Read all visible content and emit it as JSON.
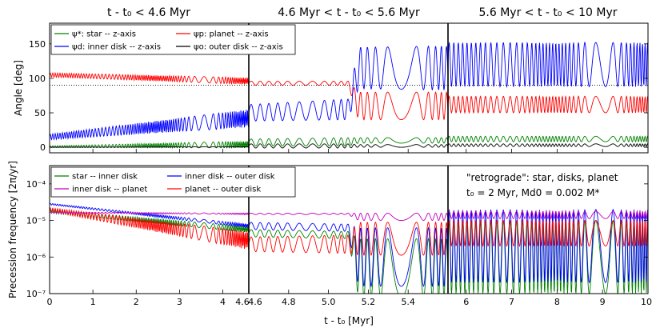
{
  "colors": {
    "star": "#008000",
    "inner": "#0000ff",
    "planet": "#ff0000",
    "outer": "#000000",
    "mag": "#bf00bf"
  },
  "panel_titles": [
    "t - t₀ < 4.6 Myr",
    "4.6 Myr < t - t₀ < 5.6 Myr",
    "5.6 Myr < t - t₀ < 10 Myr"
  ],
  "chart_data": [
    {
      "type": "line",
      "ylabel": "Angle [deg]",
      "ylim": [
        -8,
        180
      ],
      "yticks": [
        0,
        50,
        100,
        150
      ],
      "reference_line": 90,
      "legend": [
        "ψ*: star -- z-axis",
        "ψd: inner disk -- z-axis",
        "ψp: planet -- z-axis",
        "ψo: outer disk -- z-axis"
      ],
      "series": [
        {
          "name": "planet",
          "segments": [
            {
              "range": [
                0,
                4.6
              ],
              "center": [
                105,
                96
              ],
              "amp": [
                3,
                5
              ]
            },
            {
              "range": [
                4.6,
                5.6
              ],
              "center": [
                93,
                93,
                60,
                60
              ],
              "amp": [
                3,
                3,
                20,
                20
              ],
              "knots": [
                0,
                0.5,
                0.55,
                1
              ]
            },
            {
              "range": [
                5.6,
                10
              ],
              "center": [
                62,
                62
              ],
              "amp": [
                12,
                12
              ]
            }
          ]
        },
        {
          "name": "inner disk",
          "segments": [
            {
              "range": [
                0,
                4.6
              ],
              "center": [
                15,
                42
              ],
              "amp": [
                4,
                13
              ]
            },
            {
              "range": [
                4.6,
                5.6
              ],
              "center": [
                50,
                55,
                115,
                115
              ],
              "amp": [
                12,
                15,
                30,
                32
              ],
              "knots": [
                0,
                0.5,
                0.55,
                1
              ]
            },
            {
              "range": [
                5.6,
                10
              ],
              "center": [
                120,
                120
              ],
              "amp": [
                32,
                32
              ]
            }
          ]
        },
        {
          "name": "star",
          "segments": [
            {
              "range": [
                0,
                4.6
              ],
              "center": [
                1,
                4
              ],
              "amp": [
                1,
                5
              ]
            },
            {
              "range": [
                4.6,
                5.6
              ],
              "center": [
                7,
                8,
                10,
                10
              ],
              "amp": [
                5,
                6,
                4,
                4
              ],
              "knots": [
                0,
                0.5,
                0.55,
                1
              ]
            },
            {
              "range": [
                5.6,
                10
              ],
              "center": [
                12,
                12
              ],
              "amp": [
                4,
                4
              ]
            }
          ]
        },
        {
          "name": "outer disk",
          "segments": [
            {
              "range": [
                0,
                4.6
              ],
              "center": [
                0,
                0.5
              ],
              "amp": [
                0.3,
                0.5
              ]
            },
            {
              "range": [
                4.6,
                5.6
              ],
              "center": [
                2,
                2,
                2,
                2
              ],
              "amp": [
                3,
                3,
                2,
                2
              ],
              "knots": [
                0,
                0.5,
                0.55,
                1
              ]
            },
            {
              "range": [
                5.6,
                10
              ],
              "center": [
                3,
                3
              ],
              "amp": [
                2,
                2
              ]
            }
          ]
        }
      ]
    },
    {
      "type": "line",
      "yscale": "log",
      "ylabel": "Precession frequency [2π/yr]",
      "ylim_exp": [
        -7,
        -3.5
      ],
      "ytick_exps": [
        -7,
        -6,
        -5,
        -4
      ],
      "ytick_labels": [
        "10⁻⁷",
        "10⁻⁶",
        "10⁻⁵",
        "10⁻⁴"
      ],
      "legend": [
        "star -- inner disk",
        "inner disk -- planet",
        "inner disk -- outer disk",
        "planet -- outer disk"
      ],
      "series": [
        {
          "name": "star -- inner disk",
          "segments": [
            {
              "range": [
                0,
                4.6
              ],
              "center": [
                -4.75,
                -5.25
              ],
              "amp": [
                0.05,
                0.08
              ]
            },
            {
              "range": [
                4.6,
                5.6
              ],
              "center": [
                -5.35,
                -5.4,
                -6.3,
                -6.3
              ],
              "amp": [
                0.1,
                0.1,
                0.8,
                0.8
              ],
              "knots": [
                0,
                0.5,
                0.55,
                1
              ]
            },
            {
              "range": [
                5.6,
                10
              ],
              "center": [
                -6,
                -6
              ],
              "amp": [
                1,
                1
              ]
            }
          ]
        },
        {
          "name": "inner disk -- outer disk",
          "segments": [
            {
              "range": [
                0,
                4.6
              ],
              "center": [
                -4.55,
                -5.15
              ],
              "amp": [
                0.02,
                0.05
              ]
            },
            {
              "range": [
                4.6,
                5.6
              ],
              "center": [
                -5.15,
                -5.2,
                -6,
                -6
              ],
              "amp": [
                0.1,
                0.1,
                0.8,
                0.8
              ],
              "knots": [
                0,
                0.5,
                0.55,
                1
              ]
            },
            {
              "range": [
                5.6,
                10
              ],
              "center": [
                -5.7,
                -5.7
              ],
              "amp": [
                1,
                1
              ]
            }
          ]
        },
        {
          "name": "planet -- outer disk",
          "segments": [
            {
              "range": [
                0,
                4.6
              ],
              "center": [
                -4.7,
                -5.55
              ],
              "amp": [
                0.05,
                0.25
              ]
            },
            {
              "range": [
                4.6,
                5.6
              ],
              "center": [
                -5.65,
                -5.65,
                -5.5,
                -5.5
              ],
              "amp": [
                0.2,
                0.25,
                0.45,
                0.45
              ],
              "knots": [
                0,
                0.5,
                0.55,
                1
              ]
            },
            {
              "range": [
                5.6,
                10
              ],
              "center": [
                -5.35,
                -5.35
              ],
              "amp": [
                0.35,
                0.35
              ]
            }
          ]
        },
        {
          "name": "inner disk -- planet",
          "segments": [
            {
              "range": [
                0,
                4.6
              ],
              "center": [
                -4.78,
                -4.82
              ],
              "amp": [
                0.01,
                0.02
              ]
            },
            {
              "range": [
                4.6,
                5.6
              ],
              "center": [
                -4.82,
                -4.82,
                -4.9,
                -4.9
              ],
              "amp": [
                0.02,
                0.02,
                0.1,
                0.1
              ],
              "knots": [
                0,
                0.5,
                0.55,
                1
              ]
            },
            {
              "range": [
                5.6,
                10
              ],
              "center": [
                -4.85,
                -4.85
              ],
              "amp": [
                0.1,
                0.1
              ]
            }
          ]
        }
      ]
    }
  ],
  "x_axis": {
    "label": "t - t₀ [Myr]",
    "panels": [
      {
        "range": [
          0,
          4.6
        ],
        "ticks": [
          0,
          1,
          2,
          3,
          4
        ],
        "end_label": "4.6"
      },
      {
        "range": [
          4.6,
          5.6
        ],
        "ticks": [
          4.8,
          5.0,
          5.2,
          5.4
        ],
        "start_label": "4.6"
      },
      {
        "range": [
          5.6,
          10
        ],
        "ticks": [
          6,
          7,
          8,
          9
        ],
        "end_label": "10"
      }
    ]
  },
  "annotation": {
    "line1": "\"retrograde\":   star, disks, planet",
    "line2": "t₀ = 2 Myr,   Md0 = 0.002 M*"
  }
}
